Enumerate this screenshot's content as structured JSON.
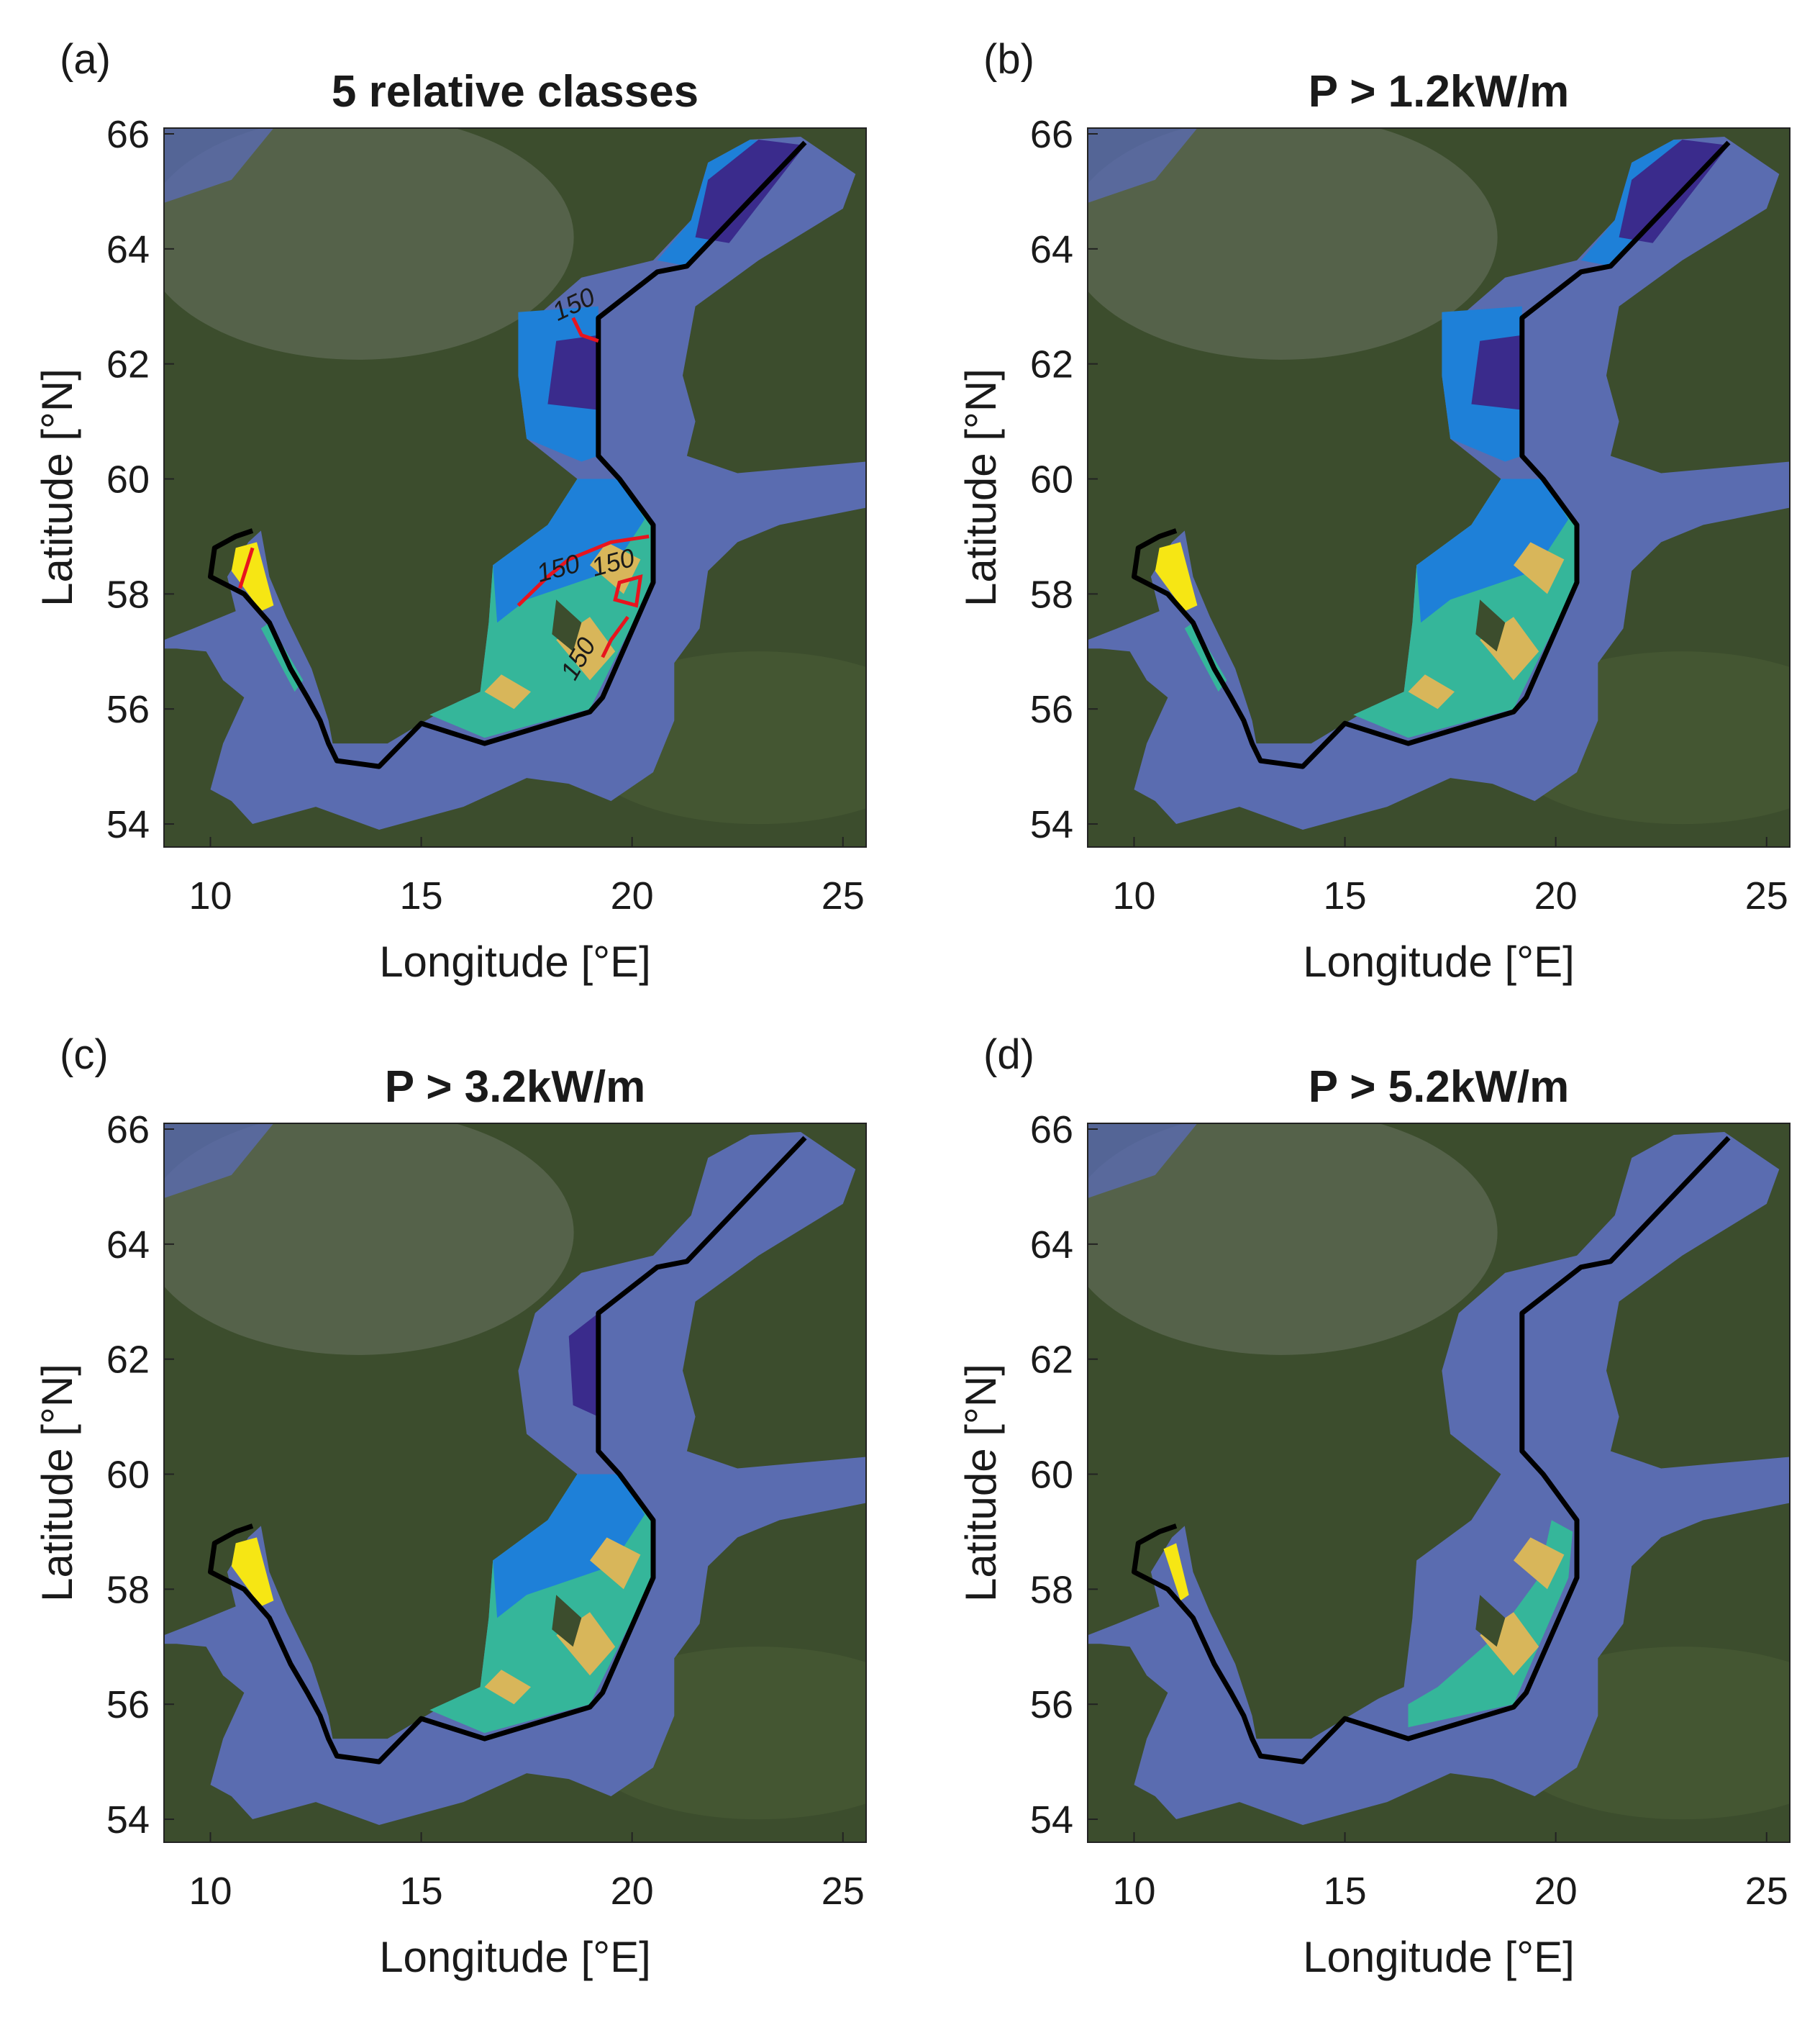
{
  "chart_data": [
    {
      "type": "map",
      "panel_label": "(a)",
      "title": "5 relative classes",
      "xlabel": "Longitude [°E]",
      "ylabel": "Latitude [°N]",
      "xlim": [
        8.9,
        25.55
      ],
      "ylim": [
        53.6,
        66.1
      ],
      "xticks": [
        10,
        15,
        20,
        25
      ],
      "yticks": [
        54,
        56,
        58,
        60,
        62,
        64,
        66
      ],
      "contour_labels": [
        150,
        150,
        150,
        150
      ],
      "contour_color": "#e8141e"
    },
    {
      "type": "map",
      "panel_label": "(b)",
      "title": "P > 1.2kW/m",
      "xlabel": "Longitude [°E]",
      "ylabel": "Latitude [°N]",
      "xlim": [
        8.9,
        25.55
      ],
      "ylim": [
        53.6,
        66.1
      ],
      "xticks": [
        10,
        15,
        20,
        25
      ],
      "yticks": [
        54,
        56,
        58,
        60,
        62,
        64,
        66
      ]
    },
    {
      "type": "map",
      "panel_label": "(c)",
      "title": "P > 3.2kW/m",
      "xlabel": "Longitude [°E]",
      "ylabel": "Latitude [°N]",
      "xlim": [
        8.9,
        25.55
      ],
      "ylim": [
        53.6,
        66.1
      ],
      "xticks": [
        10,
        15,
        20,
        25
      ],
      "yticks": [
        54,
        56,
        58,
        60,
        62,
        64,
        66
      ]
    },
    {
      "type": "map",
      "panel_label": "(d)",
      "title": "P > 5.2kW/m",
      "xlabel": "Longitude [°E]",
      "ylabel": "Latitude [°N]",
      "xlim": [
        8.9,
        25.55
      ],
      "ylim": [
        53.6,
        66.1
      ],
      "xticks": [
        10,
        15,
        20,
        25
      ],
      "yticks": [
        54,
        56,
        58,
        60,
        62,
        64,
        66
      ]
    }
  ]
}
